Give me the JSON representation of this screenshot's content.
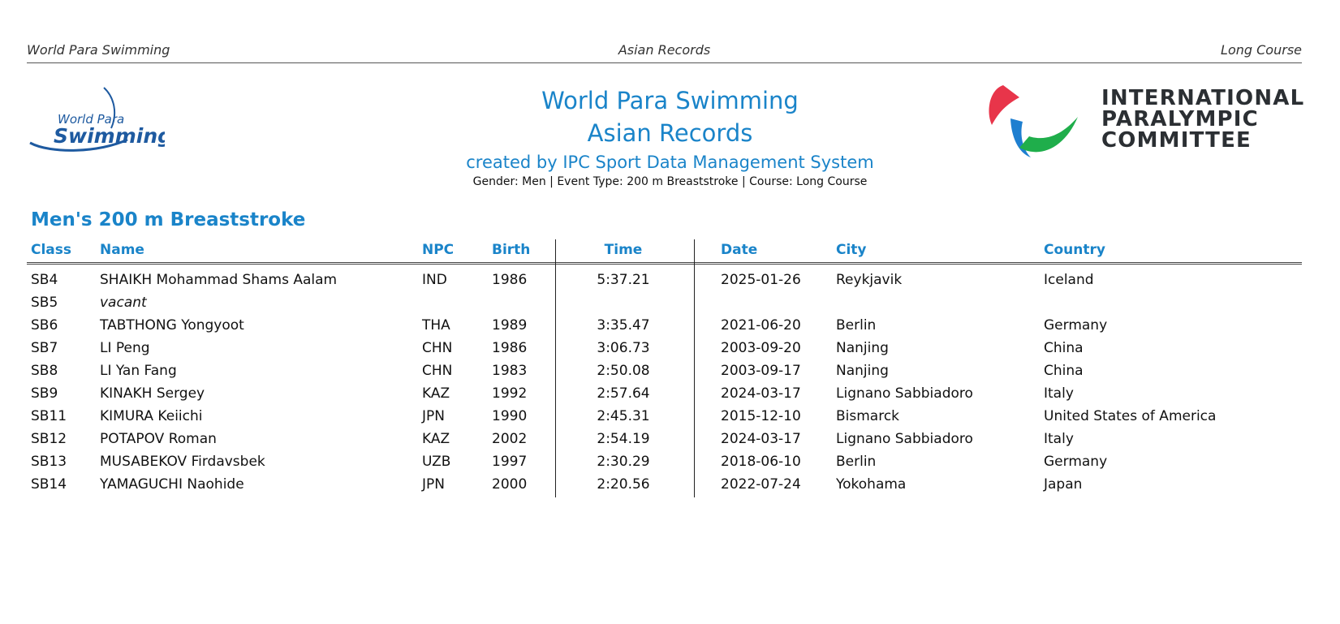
{
  "header": {
    "left": "World Para Swimming",
    "center": "Asian Records",
    "right": "Long Course"
  },
  "logos": {
    "wps_line1": "World Para",
    "wps_line2": "Swimming",
    "ipc_line1": "INTERNATIONAL",
    "ipc_line2": "PARALYMPIC",
    "ipc_line3": "COMMITTEE"
  },
  "titles": {
    "line1": "World Para Swimming",
    "line2": "Asian Records",
    "line3": "created by IPC Sport Data Management System",
    "subtitle": "Gender: Men | Event Type: 200 m Breaststroke | Course: Long Course"
  },
  "section": {
    "title": "Men's 200 m Breaststroke"
  },
  "columns": {
    "class": "Class",
    "name": "Name",
    "npc": "NPC",
    "birth": "Birth",
    "time": "Time",
    "date": "Date",
    "city": "City",
    "country": "Country"
  },
  "rows": [
    {
      "class": "SB4",
      "name": "SHAIKH Mohammad Shams Aalam",
      "npc": "IND",
      "birth": "1986",
      "time": "5:37.21",
      "date": "2025-01-26",
      "city": "Reykjavik",
      "country": "Iceland"
    },
    {
      "class": "SB5",
      "name": "vacant",
      "npc": "",
      "birth": "",
      "time": "",
      "date": "",
      "city": "",
      "country": ""
    },
    {
      "class": "SB6",
      "name": "TABTHONG Yongyoot",
      "npc": "THA",
      "birth": "1989",
      "time": "3:35.47",
      "date": "2021-06-20",
      "city": "Berlin",
      "country": "Germany"
    },
    {
      "class": "SB7",
      "name": "LI Peng",
      "npc": "CHN",
      "birth": "1986",
      "time": "3:06.73",
      "date": "2003-09-20",
      "city": "Nanjing",
      "country": "China"
    },
    {
      "class": "SB8",
      "name": "LI Yan Fang",
      "npc": "CHN",
      "birth": "1983",
      "time": "2:50.08",
      "date": "2003-09-17",
      "city": "Nanjing",
      "country": "China"
    },
    {
      "class": "SB9",
      "name": "KINAKH Sergey",
      "npc": "KAZ",
      "birth": "1992",
      "time": "2:57.64",
      "date": "2024-03-17",
      "city": "Lignano Sabbiadoro",
      "country": "Italy"
    },
    {
      "class": "SB11",
      "name": "KIMURA Keiichi",
      "npc": "JPN",
      "birth": "1990",
      "time": "2:45.31",
      "date": "2015-12-10",
      "city": "Bismarck",
      "country": "United States of America"
    },
    {
      "class": "SB12",
      "name": "POTAPOV Roman",
      "npc": "KAZ",
      "birth": "2002",
      "time": "2:54.19",
      "date": "2024-03-17",
      "city": "Lignano Sabbiadoro",
      "country": "Italy"
    },
    {
      "class": "SB13",
      "name": "MUSABEKOV Firdavsbek",
      "npc": "UZB",
      "birth": "1997",
      "time": "2:30.29",
      "date": "2018-06-10",
      "city": "Berlin",
      "country": "Germany"
    },
    {
      "class": "SB14",
      "name": "YAMAGUCHI Naohide",
      "npc": "JPN",
      "birth": "2000",
      "time": "2:20.56",
      "date": "2022-07-24",
      "city": "Yokohama",
      "country": "Japan"
    }
  ],
  "colors": {
    "accent_blue": "#1a84c9",
    "ipc_red": "#e8354a",
    "ipc_blue": "#1e7fd0",
    "ipc_green": "#1fae4b"
  }
}
